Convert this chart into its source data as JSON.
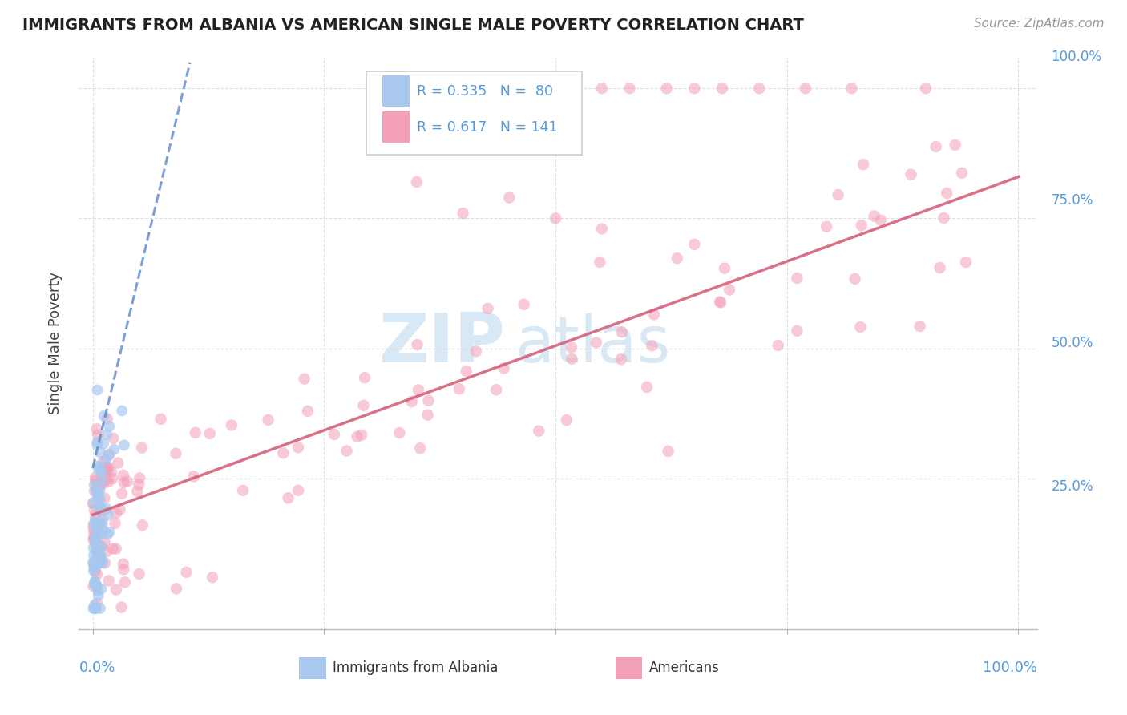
{
  "title": "IMMIGRANTS FROM ALBANIA VS AMERICAN SINGLE MALE POVERTY CORRELATION CHART",
  "source": "Source: ZipAtlas.com",
  "ylabel": "Single Male Poverty",
  "legend_r1": "R = 0.335",
  "legend_n1": "N = 80",
  "legend_r2": "R = 0.617",
  "legend_n2": "N = 141",
  "color_albania": "#A8C8F0",
  "color_americans": "#F4A0B8",
  "trendline_albania": "#5A8AC6",
  "trendline_americans": "#D4607A",
  "watermark_zip": "ZIP",
  "watermark_atlas": "atlas",
  "grid_color": "#DDDDDD",
  "axis_label_color": "#5599DD",
  "title_color": "#222222",
  "source_color": "#999999"
}
